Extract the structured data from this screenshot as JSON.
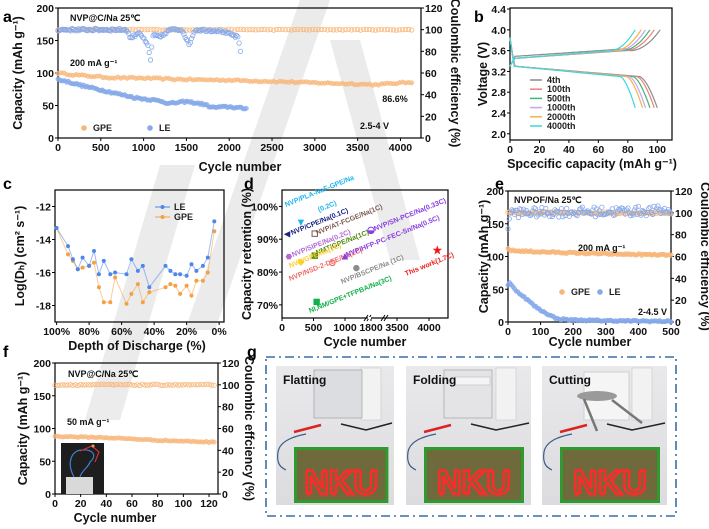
{
  "chart_data": [
    {
      "panel": "a",
      "type": "scatter",
      "xlabel": "Cycle number",
      "ylabel": "Capacity (mAh g⁻¹)",
      "y2label": "Coulombic efficiency (%)",
      "xlim": [
        0,
        4240
      ],
      "ylim": [
        0,
        200
      ],
      "y2lim": [
        0,
        120
      ],
      "xticks": [
        0,
        500,
        1000,
        1500,
        2000,
        2500,
        3000,
        3500,
        4000
      ],
      "yticks": [
        0,
        50,
        100,
        150,
        200
      ],
      "y2ticks": [
        0,
        20,
        40,
        60,
        80,
        100,
        120
      ],
      "annotations": [
        "NVP@C/Na   25℃",
        "200 mA g⁻¹",
        "86.6%",
        "2.5-4 V"
      ],
      "legend": [
        {
          "name": "GPE",
          "color": "#f8b77a"
        },
        {
          "name": "LE",
          "color": "#86a9ea"
        }
      ],
      "series": [
        {
          "name": "GPE",
          "quantity": "capacity",
          "color": "#f8b77a",
          "points": [
            [
              0,
              100
            ],
            [
              200,
              97
            ],
            [
              600,
              93
            ],
            [
              1000,
              92
            ],
            [
              1500,
              90
            ],
            [
              2000,
              89
            ],
            [
              2500,
              87
            ],
            [
              3000,
              85
            ],
            [
              3500,
              83
            ],
            [
              3700,
              82
            ],
            [
              4150,
              86
            ]
          ]
        },
        {
          "name": "GPE",
          "quantity": "coulombic_efficiency",
          "color": "#f8b77a",
          "points": [
            [
              0,
              100
            ],
            [
              4150,
              100
            ]
          ]
        },
        {
          "name": "LE",
          "quantity": "capacity",
          "color": "#86a9ea",
          "points": [
            [
              0,
              90
            ],
            [
              100,
              87
            ],
            [
              300,
              80
            ],
            [
              600,
              71
            ],
            [
              900,
              62
            ],
            [
              1200,
              57
            ],
            [
              1300,
              53
            ],
            [
              1500,
              56
            ],
            [
              1700,
              52
            ],
            [
              1800,
              47
            ],
            [
              2000,
              48
            ],
            [
              2200,
              45
            ]
          ]
        },
        {
          "name": "LE",
          "quantity": "coulombic_efficiency",
          "color": "#86a9ea",
          "points": [
            [
              0,
              100
            ],
            [
              800,
              100
            ],
            [
              850,
              92
            ],
            [
              950,
              98
            ],
            [
              1050,
              85
            ],
            [
              1080,
              72
            ],
            [
              1110,
              95
            ],
            [
              1200,
              93
            ],
            [
              1300,
              100
            ],
            [
              1450,
              100
            ],
            [
              1530,
              86
            ],
            [
              1600,
              100
            ],
            [
              1900,
              99
            ],
            [
              2100,
              93
            ],
            [
              2130,
              80
            ]
          ]
        }
      ]
    },
    {
      "panel": "b",
      "type": "line",
      "xlabel": "Spcecific capacity (mAh g⁻¹)",
      "ylabel": "Voltage (V)",
      "xlim": [
        0,
        110
      ],
      "ylim": [
        1.88,
        4.42
      ],
      "xticks": [
        0,
        20,
        40,
        60,
        80,
        100
      ],
      "yticks": [
        2.0,
        2.4,
        2.8,
        3.2,
        3.6,
        4.0,
        4.4
      ],
      "yticklabels": [
        "2.0",
        "2.4",
        "2.8",
        "3.2",
        "3.6",
        "4.0",
        "4.4"
      ],
      "legend_position": "center-left",
      "series": [
        {
          "name": "4th",
          "color": "#8c8c8c",
          "charge_capacity": 102,
          "discharge_capacity": 100
        },
        {
          "name": "100th",
          "color": "#f07f7f",
          "charge_capacity": 98,
          "discharge_capacity": 98
        },
        {
          "name": "500th",
          "color": "#3cb878",
          "charge_capacity": 95,
          "discharge_capacity": 95
        },
        {
          "name": "1000th",
          "color": "#c8a2f2",
          "charge_capacity": 92,
          "discharge_capacity": 92
        },
        {
          "name": "2000th",
          "color": "#f2b447",
          "charge_capacity": 89,
          "discharge_capacity": 90
        },
        {
          "name": "4000th",
          "color": "#3fd6e0",
          "charge_capacity": 85,
          "discharge_capacity": 85
        }
      ]
    },
    {
      "panel": "c",
      "type": "line",
      "xlabel": "Depth of Discharge (%)",
      "ylabel": "Log(Dₕ) (cm² s⁻¹)",
      "xlim": [
        101,
        -3
      ],
      "ylim": [
        -19,
        -11
      ],
      "xticks": [
        100,
        80,
        60,
        40,
        20,
        0
      ],
      "xticklabels": [
        "100%",
        "80%",
        "60%",
        "40%",
        "20%",
        "0%"
      ],
      "yticks": [
        -12,
        -14,
        -16,
        -18
      ],
      "legend_position": "top-right",
      "x": [
        100,
        93,
        90,
        87,
        84,
        80,
        77,
        74,
        71,
        67,
        64,
        57,
        54,
        50,
        47,
        43,
        33,
        30,
        27,
        24,
        20,
        17,
        14,
        10,
        7,
        3
      ],
      "series": [
        {
          "name": "LE",
          "color": "#4f86ea",
          "values": [
            -13.3,
            -14.4,
            -15.2,
            -15.8,
            -15.1,
            -15.6,
            -14.7,
            -16.1,
            -15.3,
            -16.1,
            -16.0,
            -16.1,
            -15.2,
            -15.9,
            -15.6,
            -16.9,
            -15.6,
            -15.9,
            -16.1,
            -16.1,
            -16.2,
            -15.5,
            -15.9,
            -15.6,
            -15.1,
            -12.9
          ]
        },
        {
          "name": "GPE",
          "color": "#f5a043",
          "values": [
            -13.3,
            -14.9,
            -15.3,
            -15.8,
            -15.7,
            -15.6,
            -15.4,
            -16.9,
            -17.8,
            -17.8,
            -16.3,
            -17.9,
            -17.3,
            -16.7,
            -17.8,
            -17.2,
            -16.9,
            -16.7,
            -16.8,
            -17.3,
            -16.8,
            -17.4,
            -16.5,
            -16.5,
            -16.0,
            -13.5
          ]
        }
      ]
    },
    {
      "panel": "d",
      "type": "scatter",
      "xlabel": "Cycle number",
      "ylabel": "Capacity retention (%)",
      "ylim": [
        66,
        105
      ],
      "xticks": [
        0,
        500,
        1000,
        1800,
        3500,
        4000
      ],
      "yticks": [
        70,
        80,
        90,
        100
      ],
      "yticklabels": [
        "70%",
        "80%",
        "90%",
        "100%"
      ],
      "x_axis_break": [
        1800,
        3500
      ],
      "points": [
        {
          "label": [
            "NVP/PLA-NaF-GPE/Na",
            "(0.2C)"
          ],
          "x": 300,
          "y": 95,
          "color": "#1fb4f0",
          "marker": "triangle-down"
        },
        {
          "label": [
            "NVP/CPE/Na(0.1C)"
          ],
          "x": 80,
          "y": 91.5,
          "color": "#1a237e",
          "marker": "triangle-left"
        },
        {
          "label": [
            "NVP/AT-FCGE/Na(1C)"
          ],
          "x": 520,
          "y": 91.7,
          "color": "#7b5a52",
          "marker": "square-open"
        },
        {
          "label": [
            "NVP/SIPE/Na(0.2C)"
          ],
          "x": 110,
          "y": 84.7,
          "color": "#b26ad6",
          "marker": "hexagon"
        },
        {
          "label": [
            "NMT/GPE/Na(1C)"
          ],
          "x": 520,
          "y": 85,
          "color": "#4f8a10",
          "marker": "square"
        },
        {
          "label": [
            "NVP/GPE/Na(1C)"
          ],
          "x": 300,
          "y": 83,
          "color": "#ffcf2e",
          "marker": "diamond"
        },
        {
          "label": [
            "NVP/NSD-2-DEE/Na(2C)"
          ],
          "x": 800,
          "y": 82.8,
          "color": "#f06a6a",
          "marker": "circle-open"
        },
        {
          "label": [
            "NVP/HFP-PC-FEC-Sn/Na(0.5C)"
          ],
          "x": 1000,
          "y": 84.8,
          "color": "#8a3de0",
          "marker": "triangle-up"
        },
        {
          "label": [
            "NVP/SN-PCE/Na(0.33C)"
          ],
          "x": 1800,
          "y": 92.7,
          "color": "#8a3de0",
          "marker": "circle-half"
        },
        {
          "label": [
            "NVP/BSCPE/Na (1C)"
          ],
          "x": 1350,
          "y": 81.2,
          "color": "#8c8c8c",
          "marker": "circle"
        },
        {
          "label": [
            "NI,NM/GPE+TFPBA/Na(3C)"
          ],
          "x": 550,
          "y": 70.9,
          "color": "#12b04a",
          "marker": "square"
        },
        {
          "label": [
            "This work(1.7C)"
          ],
          "x": 4130,
          "y": 86.6,
          "color": "#f01818",
          "marker": "star"
        }
      ]
    },
    {
      "panel": "e",
      "type": "scatter",
      "xlabel": "Cycle number",
      "ylabel": "Capacity (mAh g⁻¹)",
      "y2label": "Coulombic efficiency (%)",
      "xlim": [
        0,
        500
      ],
      "ylim": [
        0,
        200
      ],
      "y2lim": [
        0,
        120
      ],
      "xticks": [
        0,
        100,
        200,
        300,
        400,
        500
      ],
      "yticks": [
        0,
        50,
        100,
        150,
        200
      ],
      "y2ticks": [
        0,
        20,
        40,
        60,
        80,
        100,
        120
      ],
      "annotations": [
        "NVPOF/Na   25℃",
        "200 mA g⁻¹",
        "2-4.5 V"
      ],
      "legend": [
        {
          "name": "GPE",
          "color": "#f8b77a"
        },
        {
          "name": "LE",
          "color": "#86a9ea"
        }
      ],
      "series": [
        {
          "name": "GPE",
          "quantity": "capacity",
          "color": "#f8b77a",
          "points": [
            [
              0,
              112
            ],
            [
              10,
              109
            ],
            [
              100,
              107
            ],
            [
              300,
              104
            ],
            [
              500,
              102
            ]
          ]
        },
        {
          "name": "GPE",
          "quantity": "coulombic_efficiency",
          "color": "#f8b77a",
          "points": [
            [
              0,
              100
            ],
            [
              500,
              100
            ]
          ]
        },
        {
          "name": "LE",
          "quantity": "capacity",
          "color": "#86a9ea",
          "points": [
            [
              0,
              57
            ],
            [
              5,
              60
            ],
            [
              20,
              50
            ],
            [
              50,
              38
            ],
            [
              80,
              25
            ],
            [
              100,
              18
            ],
            [
              130,
              10
            ],
            [
              150,
              5
            ],
            [
              200,
              3
            ],
            [
              300,
              2
            ],
            [
              500,
              1
            ]
          ]
        },
        {
          "name": "LE",
          "quantity": "coulombic_efficiency",
          "color": "#86a9ea",
          "points": [
            [
              0,
              85
            ],
            [
              5,
              100
            ],
            [
              500,
              102
            ]
          ]
        }
      ]
    },
    {
      "panel": "f",
      "type": "scatter",
      "xlabel": "Cycle number",
      "ylabel": "Capacity (mAh g⁻¹)",
      "y2label": "Coulombic effciency (%)",
      "xlim": [
        0,
        127
      ],
      "ylim": [
        0,
        200
      ],
      "y2lim": [
        0,
        120
      ],
      "xticks": [
        0,
        20,
        40,
        60,
        80,
        100,
        120
      ],
      "yticks": [
        0,
        50,
        100,
        150,
        200
      ],
      "y2ticks": [
        0,
        20,
        40,
        60,
        80,
        100,
        120
      ],
      "annotations": [
        "NVP@C/Na   25℃",
        "50 mA g⁻¹"
      ],
      "series": [
        {
          "name": "GPE",
          "quantity": "capacity",
          "color": "#f8b77a",
          "points": [
            [
              0,
              88
            ],
            [
              40,
              86
            ],
            [
              80,
              82
            ],
            [
              125,
              79
            ]
          ]
        },
        {
          "name": "GPE",
          "quantity": "coulombic_efficiency",
          "color": "#f8b77a",
          "points": [
            [
              0,
              100
            ],
            [
              125,
              100
            ]
          ]
        }
      ]
    }
  ],
  "panel_g": {
    "panel": "g",
    "border_color": "#3a6ea5",
    "photos": [
      {
        "label": "Flatting",
        "board_text": "NKU"
      },
      {
        "label": "Folding",
        "board_text": "NKU"
      },
      {
        "label": "Cutting",
        "board_text": "NKU"
      }
    ]
  }
}
